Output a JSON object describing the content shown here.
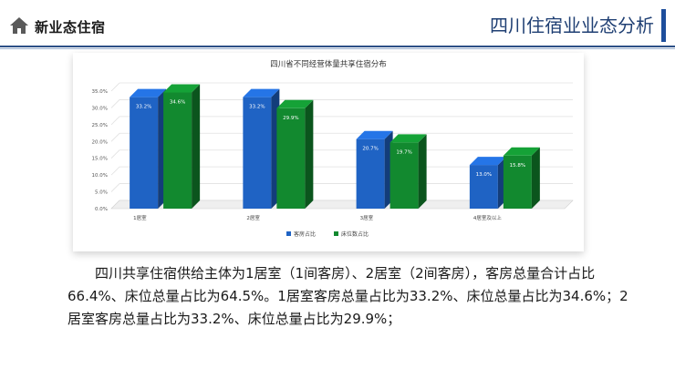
{
  "header": {
    "brand": "新业态住宿",
    "slide_title": "四川住宿业业态分析",
    "home_icon": "home-icon"
  },
  "chart_data": {
    "type": "bar",
    "title": "四川省不同经营体量共享住宿分布",
    "categories": [
      "1居室",
      "2居室",
      "3居室",
      "4居室及以上"
    ],
    "series": [
      {
        "name": "客房占比",
        "values": [
          33.2,
          33.2,
          20.7,
          13.0
        ],
        "labels": [
          "33.2%",
          "33.2%",
          "20.7%",
          "13.0%"
        ]
      },
      {
        "name": "床位数占比",
        "values": [
          34.6,
          29.9,
          19.7,
          15.8
        ],
        "labels": [
          "34.6%",
          "29.9%",
          "19.7%",
          "15.8%"
        ]
      }
    ],
    "y_ticks": [
      "0.0%",
      "5.0%",
      "10.0%",
      "15.0%",
      "20.0%",
      "25.0%",
      "30.0%",
      "35.0%"
    ],
    "ylim": [
      0,
      35
    ],
    "grid": true,
    "legend_position": "bottom-center",
    "colors": [
      "#1f63c4",
      "#12892f"
    ]
  },
  "paragraph": "四川共享住宿供给主体为1居室（1间客房）、2居室（2间客房），客房总量合计占比66.4%、床位总量占比为64.5%。1居室客房总量占比为33.2%、床位总量占比为34.6%；2居室客房总量占比为33.2%、床位总量占比为29.9%；"
}
